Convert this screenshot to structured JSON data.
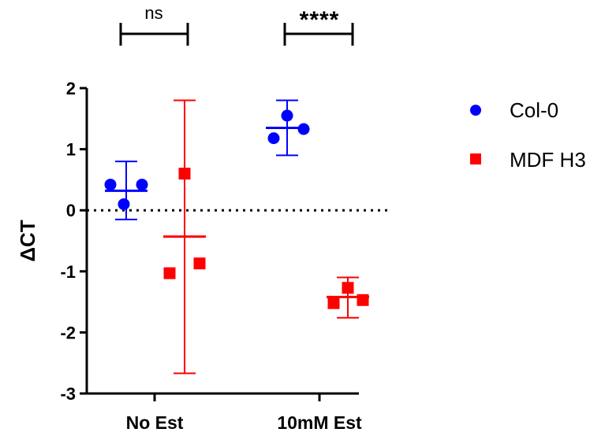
{
  "chart_data": {
    "type": "scatter",
    "title": "",
    "xlabel": "",
    "ylabel": "ΔCT",
    "ylim": [
      -3,
      2
    ],
    "yticks": [
      {
        "value": 2,
        "label": "2"
      },
      {
        "value": 1,
        "label": "1"
      },
      {
        "value": 0,
        "label": "0"
      },
      {
        "value": -1,
        "label": "-1"
      },
      {
        "value": -2,
        "label": "-2"
      },
      {
        "value": -3,
        "label": "-3"
      }
    ],
    "categories": [
      "No Est",
      "10mM Est"
    ],
    "reference_line": {
      "y": 0,
      "style": "dotted"
    },
    "legend_position": "right",
    "series": [
      {
        "name": "Col-0",
        "color": "#0000ff",
        "marker": "circle",
        "groups": [
          {
            "category": "No Est",
            "points": [
              0.42,
              0.42,
              0.1
            ],
            "mean": 0.32,
            "error_low": -0.15,
            "error_high": 0.8
          },
          {
            "category": "10mM Est",
            "points": [
              1.55,
              1.33,
              1.18
            ],
            "mean": 1.35,
            "error_low": 0.9,
            "error_high": 1.8
          }
        ]
      },
      {
        "name": "MDF H3",
        "color": "#ff0000",
        "marker": "square",
        "groups": [
          {
            "category": "No Est",
            "points": [
              0.6,
              -1.03,
              -0.87
            ],
            "mean": -0.43,
            "error_low": -2.67,
            "error_high": 1.8
          },
          {
            "category": "10mM Est",
            "points": [
              -1.27,
              -1.52,
              -1.47
            ],
            "mean": -1.42,
            "error_low": -1.76,
            "error_high": -1.1
          }
        ]
      }
    ],
    "significance": [
      {
        "category": "No Est",
        "label": "ns"
      },
      {
        "category": "10mM Est",
        "label": "****"
      }
    ]
  }
}
